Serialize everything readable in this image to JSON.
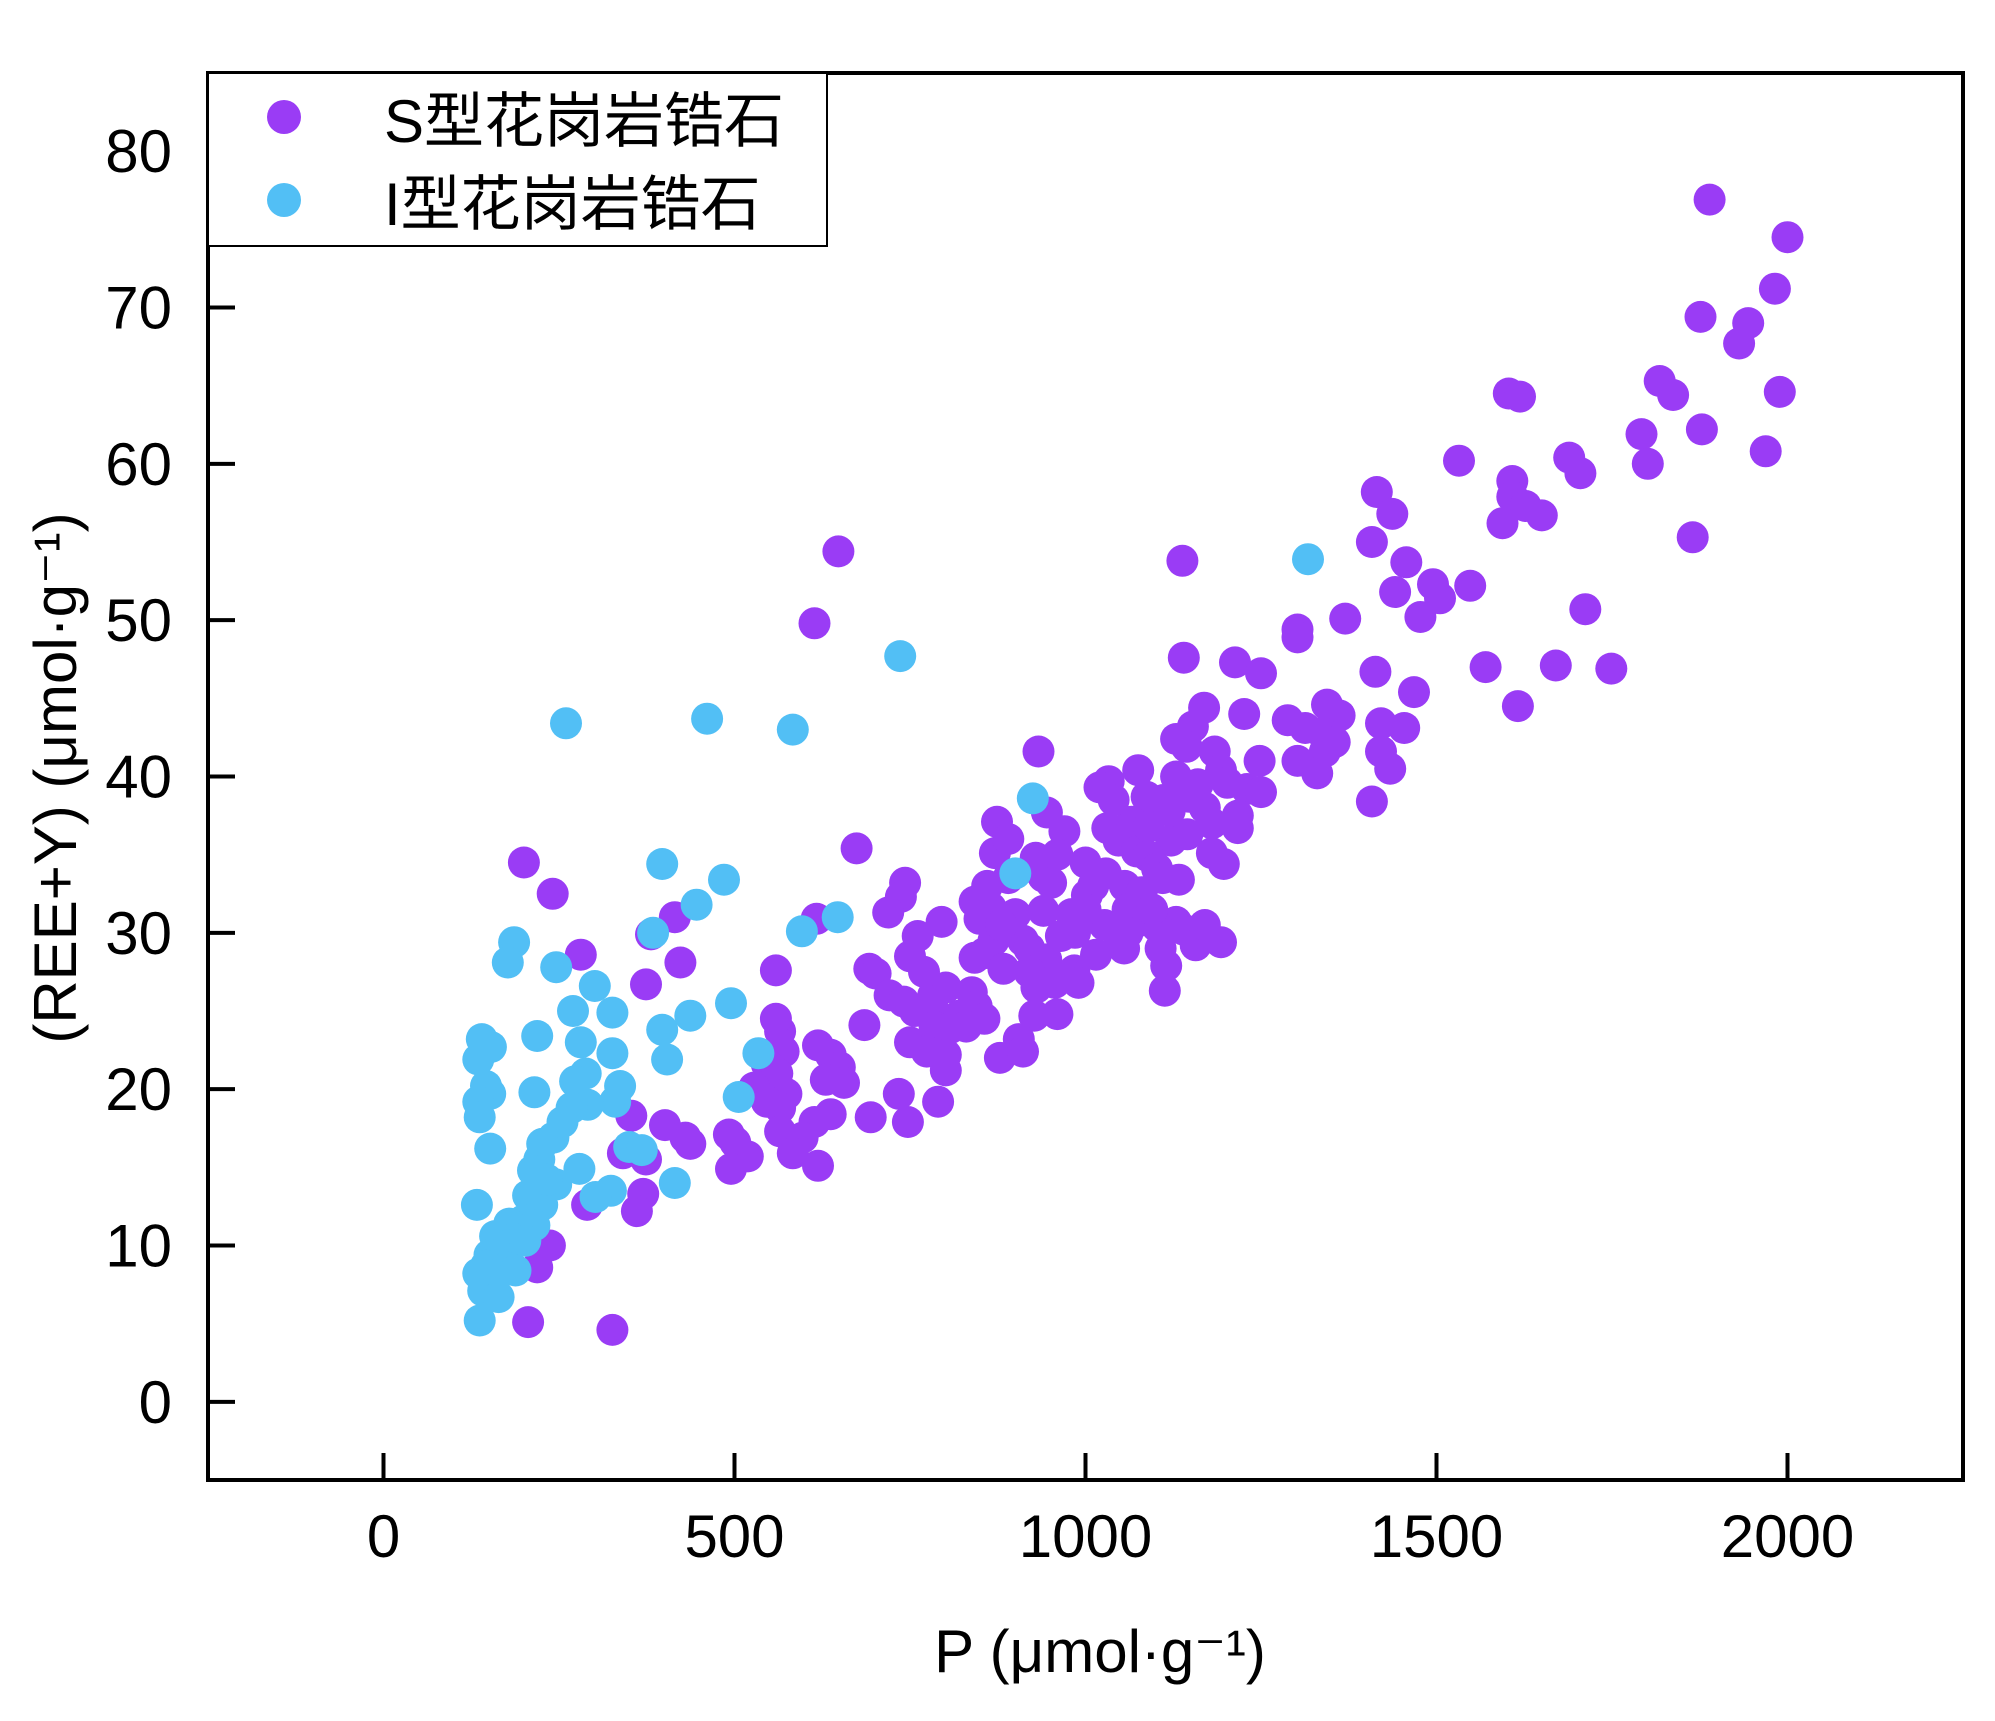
{
  "chart_data": {
    "type": "scatter",
    "xlabel": "P (μmol·g⁻¹)",
    "ylabel": "(REE+Y) (μmol·g⁻¹)",
    "xlim": [
      -250,
      2250
    ],
    "ylim": [
      -5,
      85
    ],
    "xticks": [
      0,
      500,
      1000,
      1500,
      2000
    ],
    "yticks": [
      0,
      10,
      20,
      30,
      40,
      50,
      60,
      70,
      80
    ],
    "grid": false,
    "legend": "top-left",
    "series": [
      {
        "name": "S型花岗岩锆石",
        "color": "#9a3cf5",
        "points": [
          [
            1889,
            76.9
          ],
          [
            2000,
            74.5
          ],
          [
            1982,
            71.2
          ],
          [
            1944,
            69.0
          ],
          [
            1931,
            67.7
          ],
          [
            1876,
            69.4
          ],
          [
            1818,
            65.3
          ],
          [
            1837,
            64.4
          ],
          [
            1989,
            64.6
          ],
          [
            1878,
            62.2
          ],
          [
            1792,
            61.9
          ],
          [
            1801,
            60.0
          ],
          [
            1969,
            60.8
          ],
          [
            1865,
            55.3
          ],
          [
            1603,
            64.5
          ],
          [
            1619,
            64.3
          ],
          [
            1532,
            60.2
          ],
          [
            1689,
            60.4
          ],
          [
            1705,
            59.4
          ],
          [
            1608,
            58.9
          ],
          [
            1608,
            57.9
          ],
          [
            1627,
            57.3
          ],
          [
            1650,
            56.7
          ],
          [
            1594,
            56.2
          ],
          [
            1415,
            58.2
          ],
          [
            1437,
            56.8
          ],
          [
            1408,
            55.0
          ],
          [
            1457,
            53.7
          ],
          [
            1441,
            51.8
          ],
          [
            1495,
            52.3
          ],
          [
            1548,
            52.2
          ],
          [
            1505,
            51.4
          ],
          [
            1477,
            50.2
          ],
          [
            1370,
            50.1
          ],
          [
            1302,
            49.4
          ],
          [
            1302,
            48.9
          ],
          [
            1712,
            50.7
          ],
          [
            1570,
            47.0
          ],
          [
            1670,
            47.1
          ],
          [
            1749,
            46.9
          ],
          [
            1616,
            44.5
          ],
          [
            1138,
            53.8
          ],
          [
            1140,
            47.6
          ],
          [
            1213,
            47.3
          ],
          [
            1250,
            46.6
          ],
          [
            1413,
            46.7
          ],
          [
            1468,
            45.4
          ],
          [
            1169,
            44.4
          ],
          [
            1226,
            44.0
          ],
          [
            1344,
            44.6
          ],
          [
            1362,
            43.9
          ],
          [
            1288,
            43.6
          ],
          [
            1313,
            43.1
          ],
          [
            1337,
            42.8
          ],
          [
            1421,
            43.4
          ],
          [
            1454,
            43.1
          ],
          [
            1355,
            42.2
          ],
          [
            1341,
            41.6
          ],
          [
            1129,
            42.4
          ],
          [
            1153,
            43.2
          ],
          [
            1144,
            41.9
          ],
          [
            1184,
            41.6
          ],
          [
            1421,
            41.6
          ],
          [
            1302,
            41.0
          ],
          [
            1330,
            40.2
          ],
          [
            1434,
            40.5
          ],
          [
            1248,
            41.0
          ],
          [
            1193,
            40.4
          ],
          [
            1202,
            39.6
          ],
          [
            1230,
            39.2
          ],
          [
            1075,
            40.4
          ],
          [
            1033,
            39.7
          ],
          [
            1129,
            40.0
          ],
          [
            1408,
            38.4
          ],
          [
            1087,
            38.7
          ],
          [
            1111,
            38.5
          ],
          [
            1148,
            38.7
          ],
          [
            933,
            41.6
          ],
          [
            874,
            37.1
          ],
          [
            945,
            37.7
          ],
          [
            970,
            36.5
          ],
          [
            1031,
            36.7
          ],
          [
            1066,
            37.1
          ],
          [
            1047,
            35.9
          ],
          [
            1122,
            35.9
          ],
          [
            1073,
            35.2
          ],
          [
            1089,
            34.9
          ],
          [
            1180,
            35.1
          ],
          [
            1197,
            34.4
          ],
          [
            1217,
            36.7
          ],
          [
            1217,
            37.5
          ],
          [
            674,
            35.4
          ],
          [
            871,
            35.1
          ],
          [
            929,
            34.8
          ],
          [
            1029,
            33.8
          ],
          [
            1102,
            34.1
          ],
          [
            1056,
            33.0
          ],
          [
            743,
            33.2
          ],
          [
            737,
            32.3
          ],
          [
            940,
            33.6
          ],
          [
            951,
            33.2
          ],
          [
            1011,
            33.0
          ],
          [
            1080,
            32.6
          ],
          [
            842,
            32.0
          ],
          [
            865,
            31.6
          ],
          [
            1002,
            32.4
          ],
          [
            719,
            31.3
          ],
          [
            795,
            30.7
          ],
          [
            849,
            30.9
          ],
          [
            900,
            31.2
          ],
          [
            940,
            31.4
          ],
          [
            980,
            31.2
          ],
          [
            1027,
            30.5
          ],
          [
            1082,
            30.8
          ],
          [
            1129,
            30.7
          ],
          [
            1140,
            30.2
          ],
          [
            1102,
            30.4
          ],
          [
            761,
            29.8
          ],
          [
            869,
            29.5
          ],
          [
            911,
            29.5
          ],
          [
            965,
            29.8
          ],
          [
            1049,
            29.5
          ],
          [
            1157,
            29.2
          ],
          [
            1193,
            29.4
          ],
          [
            1055,
            29.0
          ],
          [
            920,
            29.0
          ],
          [
            856,
            28.7
          ],
          [
            842,
            28.4
          ],
          [
            944,
            28.3
          ],
          [
            692,
            27.7
          ],
          [
            701,
            27.4
          ],
          [
            883,
            27.7
          ],
          [
            984,
            27.6
          ],
          [
            956,
            26.8
          ],
          [
            977,
            27.2
          ],
          [
            1115,
            27.9
          ],
          [
            1113,
            26.3
          ],
          [
            801,
            26.5
          ],
          [
            721,
            26.0
          ],
          [
            741,
            25.6
          ],
          [
            783,
            26.0
          ],
          [
            757,
            25.0
          ],
          [
            838,
            26.2
          ],
          [
            783,
            25.1
          ],
          [
            820,
            24.7
          ],
          [
            845,
            25.3
          ],
          [
            856,
            24.5
          ],
          [
            685,
            24.1
          ],
          [
            785,
            24.0
          ],
          [
            807,
            23.9
          ],
          [
            927,
            24.7
          ],
          [
            905,
            23.2
          ],
          [
            750,
            23.0
          ],
          [
            774,
            22.4
          ],
          [
            801,
            22.2
          ],
          [
            878,
            22.0
          ],
          [
            911,
            22.4
          ],
          [
            801,
            21.2
          ],
          [
            570,
            22.4
          ],
          [
            619,
            22.8
          ],
          [
            637,
            22.2
          ],
          [
            650,
            21.4
          ],
          [
            546,
            21.6
          ],
          [
            561,
            21.0
          ],
          [
            630,
            20.6
          ],
          [
            656,
            20.4
          ],
          [
            528,
            20.1
          ],
          [
            574,
            19.7
          ],
          [
            734,
            19.7
          ],
          [
            546,
            19.2
          ],
          [
            565,
            18.8
          ],
          [
            790,
            19.2
          ],
          [
            694,
            18.2
          ],
          [
            747,
            17.9
          ],
          [
            637,
            18.4
          ],
          [
            614,
            17.9
          ],
          [
            565,
            17.3
          ],
          [
            597,
            16.9
          ],
          [
            583,
            15.9
          ],
          [
            619,
            15.1
          ],
          [
            492,
            17.1
          ],
          [
            501,
            16.6
          ],
          [
            519,
            15.7
          ],
          [
            495,
            14.9
          ],
          [
            565,
            23.7
          ],
          [
            559,
            24.5
          ],
          [
            559,
            27.6
          ],
          [
            617,
            30.9
          ],
          [
            648,
            54.4
          ],
          [
            614,
            49.8
          ],
          [
            200,
            34.5
          ],
          [
            241,
            32.5
          ],
          [
            281,
            28.6
          ],
          [
            415,
            31.0
          ],
          [
            381,
            29.9
          ],
          [
            423,
            28.1
          ],
          [
            374,
            26.7
          ],
          [
            353,
            18.3
          ],
          [
            401,
            17.7
          ],
          [
            430,
            16.9
          ],
          [
            437,
            16.5
          ],
          [
            341,
            15.9
          ],
          [
            374,
            15.5
          ],
          [
            370,
            13.3
          ],
          [
            361,
            12.2
          ],
          [
            290,
            12.6
          ],
          [
            237,
            10.0
          ],
          [
            219,
            8.6
          ],
          [
            206,
            5.1
          ],
          [
            326,
            4.6
          ],
          [
            1107,
            29.0
          ],
          [
            1133,
            33.4
          ],
          [
            985,
            30.0
          ],
          [
            1000,
            31.5
          ],
          [
            1015,
            28.6
          ],
          [
            1060,
            31.5
          ],
          [
            1090,
            36.8
          ],
          [
            1120,
            37.8
          ],
          [
            960,
            35.0
          ],
          [
            890,
            33.5
          ],
          [
            860,
            33.0
          ],
          [
            880,
            30.5
          ],
          [
            920,
            27.5
          ],
          [
            1000,
            34.5
          ],
          [
            1040,
            38.5
          ],
          [
            1060,
            30.0
          ],
          [
            1095,
            31.5
          ],
          [
            1170,
            38.0
          ],
          [
            1160,
            39.5
          ],
          [
            1250,
            39.0
          ],
          [
            1180,
            37.0
          ],
          [
            990,
            26.8
          ],
          [
            960,
            24.8
          ],
          [
            830,
            24.0
          ],
          [
            770,
            27.5
          ],
          [
            750,
            28.5
          ],
          [
            1170,
            30.5
          ],
          [
            1145,
            36.3
          ],
          [
            930,
            26.5
          ],
          [
            890,
            36.0
          ],
          [
            1110,
            33.5
          ],
          [
            1020,
            39.3
          ]
        ]
      },
      {
        "name": "I型花岗岩锆石",
        "color": "#52bff5",
        "points": [
          [
            1317,
            53.9
          ],
          [
            736,
            47.7
          ],
          [
            260,
            43.4
          ],
          [
            461,
            43.7
          ],
          [
            583,
            43.0
          ],
          [
            925,
            38.6
          ],
          [
            900,
            33.8
          ],
          [
            397,
            34.4
          ],
          [
            485,
            33.4
          ],
          [
            446,
            31.8
          ],
          [
            647,
            31.0
          ],
          [
            596,
            30.1
          ],
          [
            384,
            30.0
          ],
          [
            186,
            29.4
          ],
          [
            177,
            28.1
          ],
          [
            246,
            27.8
          ],
          [
            301,
            26.6
          ],
          [
            495,
            25.5
          ],
          [
            270,
            25.0
          ],
          [
            326,
            24.9
          ],
          [
            437,
            24.7
          ],
          [
            397,
            23.8
          ],
          [
            219,
            23.4
          ],
          [
            140,
            23.2
          ],
          [
            153,
            22.7
          ],
          [
            281,
            23.0
          ],
          [
            326,
            22.3
          ],
          [
            534,
            22.3
          ],
          [
            404,
            21.9
          ],
          [
            135,
            21.9
          ],
          [
            288,
            21.0
          ],
          [
            273,
            20.5
          ],
          [
            337,
            20.2
          ],
          [
            146,
            20.2
          ],
          [
            215,
            19.8
          ],
          [
            152,
            19.7
          ],
          [
            506,
            19.5
          ],
          [
            330,
            19.2
          ],
          [
            135,
            19.2
          ],
          [
            291,
            19.0
          ],
          [
            268,
            18.8
          ],
          [
            137,
            18.2
          ],
          [
            350,
            16.3
          ],
          [
            368,
            16.1
          ],
          [
            152,
            16.2
          ],
          [
            226,
            16.5
          ],
          [
            242,
            16.9
          ],
          [
            222,
            15.5
          ],
          [
            213,
            14.8
          ],
          [
            279,
            14.9
          ],
          [
            415,
            14.0
          ],
          [
            246,
            13.9
          ],
          [
            206,
            13.2
          ],
          [
            324,
            13.5
          ],
          [
            302,
            13.1
          ],
          [
            226,
            12.6
          ],
          [
            133,
            12.6
          ],
          [
            199,
            11.6
          ],
          [
            179,
            11.4
          ],
          [
            215,
            11.3
          ],
          [
            159,
            10.6
          ],
          [
            177,
            10.0
          ],
          [
            202,
            10.3
          ],
          [
            151,
            9.4
          ],
          [
            146,
            8.7
          ],
          [
            175,
            8.6
          ],
          [
            188,
            8.4
          ],
          [
            135,
            8.2
          ],
          [
            153,
            7.6
          ],
          [
            142,
            7.1
          ],
          [
            164,
            6.7
          ],
          [
            137,
            5.2
          ],
          [
            255,
            17.9
          ],
          [
            233,
            14.2
          ]
        ]
      }
    ]
  }
}
